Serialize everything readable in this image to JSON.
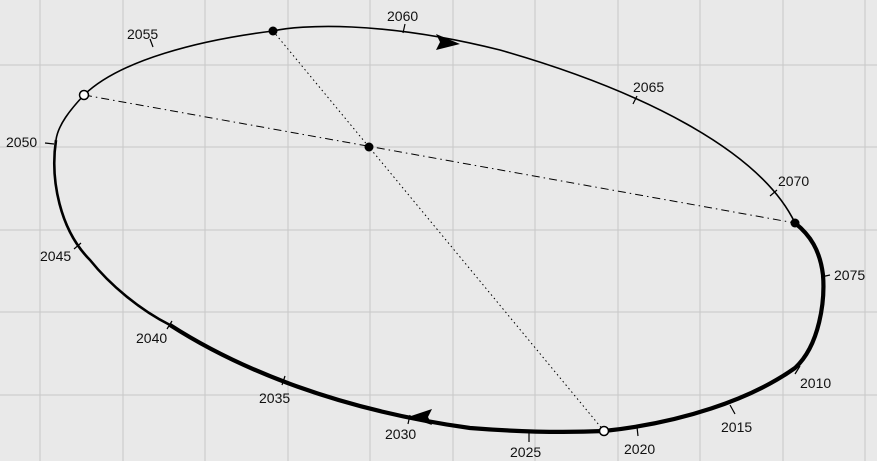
{
  "orbit": {
    "year_labels": [
      "2010",
      "2015",
      "2020",
      "2025",
      "2030",
      "2035",
      "2040",
      "2045",
      "2050",
      "2055",
      "2060",
      "2065",
      "2070",
      "2075"
    ],
    "direction": "counter-clockwise (arrows)",
    "line_color": "#000000",
    "grid_color": "#c8c8c8",
    "background": "#e9e9e9",
    "markers": [
      {
        "kind": "filled-dot",
        "near_year": "2057"
      },
      {
        "kind": "hollow-dot",
        "near_year": "2052"
      },
      {
        "kind": "filled-dot",
        "near_year": "center"
      },
      {
        "kind": "filled-dot",
        "near_year": "2072"
      },
      {
        "kind": "hollow-dot",
        "near_year": "2019"
      }
    ]
  }
}
